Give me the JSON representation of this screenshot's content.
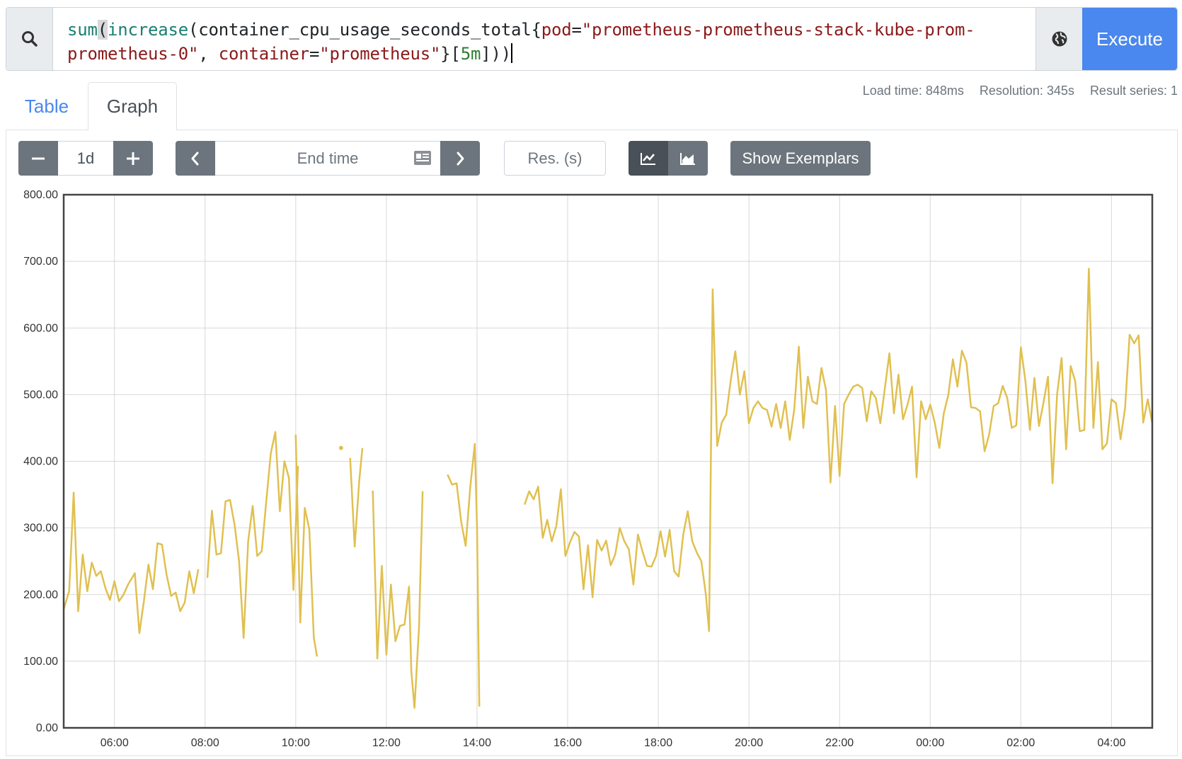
{
  "query": {
    "fn_outer": "sum",
    "fn_inner": "increase",
    "metric": "container_cpu_usage_seconds_total",
    "label1_key": "pod",
    "label1_val_line1": "\"prometheus-prometheus-stack-kube-prom-",
    "label1_val_line2": "prometheus-0\"",
    "label2_key": "container",
    "label2_val": "\"prometheus\"",
    "range": "5m"
  },
  "buttons": {
    "execute": "Execute",
    "show_exemplars": "Show Exemplars"
  },
  "tabs": {
    "table": "Table",
    "graph": "Graph"
  },
  "stats": {
    "load_time": "Load time: 848ms",
    "resolution": "Resolution: 345s",
    "result_series": "Result series: 1"
  },
  "controls": {
    "range_value": "1d",
    "end_time_placeholder": "End time",
    "resolution_placeholder": "Res. (s)"
  },
  "icons": [
    "search-icon",
    "globe-icon",
    "minus-icon",
    "plus-icon",
    "chevron-left-icon",
    "calendar-icon",
    "chevron-right-icon",
    "line-chart-icon",
    "area-chart-icon"
  ],
  "colors": {
    "accent": "#4a87ee",
    "series": "#e0c050",
    "button_dark": "#6c757d"
  },
  "chart_data": {
    "type": "line",
    "ylim": [
      0,
      800
    ],
    "y_ticks": [
      "0.00",
      "100.00",
      "200.00",
      "300.00",
      "400.00",
      "500.00",
      "600.00",
      "700.00",
      "800.00"
    ],
    "x_ticks": [
      "06:00",
      "08:00",
      "10:00",
      "12:00",
      "14:00",
      "16:00",
      "18:00",
      "20:00",
      "22:00",
      "00:00",
      "02:00",
      "04:00"
    ],
    "x_tick_hours": [
      6,
      8,
      10,
      12,
      14,
      16,
      18,
      20,
      22,
      24,
      26,
      28
    ],
    "xlim_hours": [
      4.88,
      28.9
    ],
    "grid": true,
    "series": [
      {
        "segments": [
          [
            [
              4.88,
              178
            ],
            [
              5.0,
              205
            ],
            [
              5.1,
              353
            ],
            [
              5.2,
              175
            ],
            [
              5.3,
              260
            ],
            [
              5.4,
              205
            ],
            [
              5.5,
              248
            ],
            [
              5.6,
              228
            ],
            [
              5.7,
              235
            ],
            [
              5.8,
              210
            ],
            [
              5.9,
              192
            ],
            [
              6.0,
              220
            ],
            [
              6.1,
              190
            ],
            [
              6.2,
              200
            ],
            [
              6.3,
              215
            ],
            [
              6.45,
              232
            ],
            [
              6.55,
              142
            ],
            [
              6.65,
              190
            ],
            [
              6.75,
              245
            ],
            [
              6.85,
              208
            ],
            [
              6.95,
              277
            ],
            [
              7.05,
              275
            ],
            [
              7.15,
              230
            ],
            [
              7.25,
              198
            ],
            [
              7.35,
              203
            ],
            [
              7.45,
              175
            ],
            [
              7.55,
              188
            ],
            [
              7.65,
              235
            ],
            [
              7.75,
              202
            ],
            [
              7.85,
              238
            ]
          ],
          [
            [
              8.05,
              225
            ],
            [
              8.15,
              326
            ],
            [
              8.25,
              260
            ],
            [
              8.35,
              262
            ],
            [
              8.45,
              340
            ],
            [
              8.55,
              342
            ],
            [
              8.65,
              305
            ],
            [
              8.75,
              250
            ],
            [
              8.85,
              135
            ],
            [
              8.95,
              280
            ],
            [
              9.05,
              333
            ],
            [
              9.15,
              258
            ],
            [
              9.25,
              265
            ],
            [
              9.35,
              340
            ],
            [
              9.45,
              412
            ],
            [
              9.55,
              444
            ],
            [
              9.65,
              325
            ],
            [
              9.75,
              400
            ],
            [
              9.85,
              375
            ],
            [
              9.95,
              207
            ],
            [
              10.05,
              393
            ]
          ],
          [
            [
              10.0,
              440
            ],
            [
              10.1,
              158
            ],
            [
              10.2,
              330
            ],
            [
              10.3,
              298
            ],
            [
              10.4,
              135
            ],
            [
              10.47,
              107
            ]
          ],
          [
            [
              11.0,
              420
            ]
          ],
          [
            [
              11.2,
              405
            ],
            [
              11.3,
              272
            ],
            [
              11.4,
              370
            ],
            [
              11.47,
              420
            ]
          ],
          [
            [
              11.7,
              356
            ],
            [
              11.8,
              104
            ],
            [
              11.9,
              243
            ],
            [
              12.0,
              110
            ],
            [
              12.1,
              215
            ],
            [
              12.2,
              130
            ],
            [
              12.3,
              153
            ],
            [
              12.4,
              155
            ],
            [
              12.5,
              212
            ],
            [
              12.55,
              85
            ],
            [
              12.62,
              30
            ],
            [
              12.72,
              150
            ],
            [
              12.8,
              355
            ]
          ],
          [
            [
              13.35,
              380
            ],
            [
              13.45,
              365
            ],
            [
              13.55,
              367
            ],
            [
              13.65,
              310
            ],
            [
              13.75,
              273
            ],
            [
              13.85,
              360
            ],
            [
              13.95,
              426
            ],
            [
              14.0,
              300
            ],
            [
              14.05,
              32
            ]
          ],
          [
            [
              15.05,
              335
            ],
            [
              15.15,
              355
            ],
            [
              15.25,
              343
            ],
            [
              15.35,
              362
            ],
            [
              15.45,
              285
            ],
            [
              15.55,
              312
            ],
            [
              15.65,
              280
            ],
            [
              15.75,
              303
            ],
            [
              15.85,
              358
            ],
            [
              15.95,
              258
            ],
            [
              16.05,
              278
            ],
            [
              16.15,
              294
            ],
            [
              16.25,
              287
            ],
            [
              16.35,
              208
            ],
            [
              16.45,
              274
            ],
            [
              16.55,
              196
            ],
            [
              16.65,
              282
            ],
            [
              16.75,
              266
            ],
            [
              16.85,
              281
            ],
            [
              16.95,
              244
            ],
            [
              17.05,
              260
            ],
            [
              17.15,
              300
            ],
            [
              17.25,
              280
            ],
            [
              17.35,
              268
            ],
            [
              17.45,
              215
            ],
            [
              17.55,
              290
            ],
            [
              17.65,
              265
            ],
            [
              17.75,
              243
            ],
            [
              17.85,
              242
            ],
            [
              17.95,
              258
            ],
            [
              18.05,
              295
            ],
            [
              18.15,
              257
            ],
            [
              18.25,
              297
            ],
            [
              18.35,
              235
            ],
            [
              18.45,
              227
            ],
            [
              18.55,
              290
            ],
            [
              18.65,
              325
            ],
            [
              18.75,
              280
            ],
            [
              18.85,
              263
            ],
            [
              18.95,
              250
            ],
            [
              19.05,
              200
            ],
            [
              19.12,
              145
            ],
            [
              19.2,
              658
            ],
            [
              19.3,
              423
            ],
            [
              19.4,
              458
            ],
            [
              19.5,
              470
            ],
            [
              19.6,
              522
            ],
            [
              19.7,
              565
            ],
            [
              19.8,
              500
            ],
            [
              19.9,
              535
            ],
            [
              20.0,
              457
            ],
            [
              20.1,
              480
            ],
            [
              20.2,
              490
            ],
            [
              20.3,
              480
            ],
            [
              20.4,
              477
            ],
            [
              20.5,
              452
            ],
            [
              20.6,
              486
            ],
            [
              20.7,
              450
            ],
            [
              20.8,
              490
            ],
            [
              20.9,
              432
            ],
            [
              21.0,
              478
            ],
            [
              21.1,
              572
            ],
            [
              21.2,
              450
            ],
            [
              21.3,
              527
            ],
            [
              21.4,
              490
            ],
            [
              21.5,
              486
            ],
            [
              21.6,
              540
            ],
            [
              21.7,
              507
            ],
            [
              21.8,
              368
            ],
            [
              21.9,
              483
            ],
            [
              22.0,
              378
            ],
            [
              22.1,
              486
            ],
            [
              22.2,
              500
            ],
            [
              22.3,
              512
            ],
            [
              22.4,
              515
            ],
            [
              22.5,
              510
            ],
            [
              22.6,
              460
            ],
            [
              22.7,
              505
            ],
            [
              22.8,
              495
            ],
            [
              22.9,
              457
            ],
            [
              23.0,
              510
            ],
            [
              23.1,
              562
            ],
            [
              23.2,
              472
            ],
            [
              23.3,
              530
            ],
            [
              23.4,
              463
            ],
            [
              23.5,
              485
            ],
            [
              23.6,
              512
            ],
            [
              23.7,
              376
            ],
            [
              23.8,
              490
            ],
            [
              23.9,
              463
            ],
            [
              24.0,
              485
            ],
            [
              24.1,
              458
            ],
            [
              24.2,
              420
            ],
            [
              24.3,
              472
            ],
            [
              24.4,
              500
            ],
            [
              24.5,
              553
            ],
            [
              24.6,
              512
            ],
            [
              24.7,
              566
            ],
            [
              24.8,
              548
            ],
            [
              24.9,
              481
            ],
            [
              25.0,
              480
            ],
            [
              25.1,
              475
            ],
            [
              25.2,
              415
            ],
            [
              25.3,
              440
            ],
            [
              25.4,
              483
            ],
            [
              25.5,
              487
            ],
            [
              25.6,
              513
            ],
            [
              25.7,
              495
            ],
            [
              25.8,
              450
            ],
            [
              25.9,
              454
            ],
            [
              26.0,
              571
            ],
            [
              26.1,
              521
            ],
            [
              26.2,
              447
            ],
            [
              26.3,
              525
            ],
            [
              26.4,
              453
            ],
            [
              26.5,
              488
            ],
            [
              26.6,
              527
            ],
            [
              26.7,
              367
            ],
            [
              26.8,
              500
            ],
            [
              26.9,
              555
            ],
            [
              27.0,
              418
            ],
            [
              27.1,
              543
            ],
            [
              27.2,
              520
            ],
            [
              27.3,
              445
            ],
            [
              27.4,
              447
            ],
            [
              27.5,
              689
            ],
            [
              27.6,
              450
            ],
            [
              27.7,
              549
            ],
            [
              27.8,
              418
            ],
            [
              27.9,
              427
            ],
            [
              28.0,
              493
            ],
            [
              28.1,
              487
            ],
            [
              28.2,
              433
            ],
            [
              28.3,
              480
            ],
            [
              28.4,
              590
            ],
            [
              28.5,
              577
            ],
            [
              28.6,
              589
            ],
            [
              28.7,
              458
            ],
            [
              28.8,
              493
            ],
            [
              28.9,
              457
            ],
            [
              29.0,
              455
            ],
            [
              29.1,
              495
            ],
            [
              29.2,
              540
            ],
            [
              29.3,
              474
            ],
            [
              29.4,
              560
            ]
          ]
        ]
      }
    ]
  }
}
